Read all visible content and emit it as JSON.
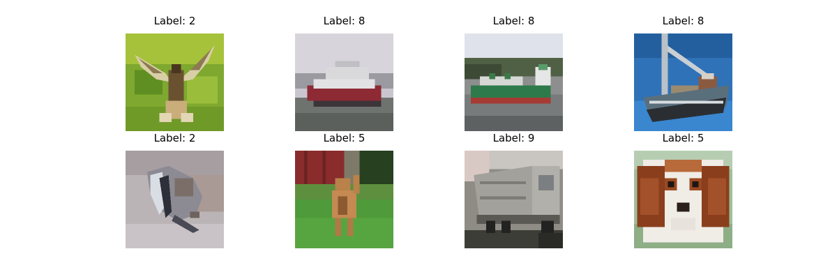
{
  "samples": [
    {
      "label": "Label: 2",
      "subject": "bird-in-flight-over-grass"
    },
    {
      "label": "Label: 8",
      "subject": "ship-on-water"
    },
    {
      "label": "Label: 8",
      "subject": "cargo-ship-near-shore"
    },
    {
      "label": "Label: 8",
      "subject": "fishing-boat-blue-sky"
    },
    {
      "label": "Label: 2",
      "subject": "bird-on-ground"
    },
    {
      "label": "Label: 5",
      "subject": "dog-on-lawn"
    },
    {
      "label": "Label: 9",
      "subject": "truck"
    },
    {
      "label": "Label: 5",
      "subject": "puppy-face"
    }
  ]
}
